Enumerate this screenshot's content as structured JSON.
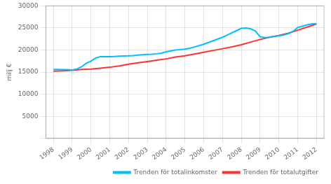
{
  "chart_data": {
    "type": "line",
    "ylabel": "milj €",
    "xlim": [
      1997.6,
      2012.4
    ],
    "ylim": [
      0,
      30000
    ],
    "xticks": [
      1998,
      1999,
      2000,
      2001,
      2002,
      2003,
      2004,
      2005,
      2006,
      2007,
      2008,
      2009,
      2010,
      2011,
      2012
    ],
    "yticks": [
      {
        "value": 0,
        "label": ""
      },
      5000,
      10000,
      15000,
      20000,
      25000,
      30000
    ],
    "grid": true,
    "legend": "lower right",
    "series": [
      {
        "name": "Trenden för totalinkomster",
        "color": "#00BFFF",
        "x": [
          1998,
          1998.25,
          1998.5,
          1998.75,
          1999,
          1999.25,
          1999.5,
          1999.75,
          2000,
          2000.25,
          2000.5,
          2000.75,
          2001,
          2001.25,
          2001.5,
          2001.75,
          2002,
          2002.25,
          2002.5,
          2002.75,
          2003,
          2003.25,
          2003.5,
          2003.75,
          2004,
          2004.25,
          2004.5,
          2004.75,
          2005,
          2005.25,
          2005.5,
          2005.75,
          2006,
          2006.25,
          2006.5,
          2006.75,
          2007,
          2007.25,
          2007.5,
          2007.75,
          2008,
          2008.25,
          2008.5,
          2008.75,
          2009,
          2009.25,
          2009.5,
          2009.75,
          2010,
          2010.25,
          2010.5,
          2010.75,
          2011,
          2011.25,
          2011.5,
          2011.75,
          2012
        ],
        "values": [
          15600,
          15600,
          15550,
          15550,
          15500,
          15700,
          16200,
          17000,
          17500,
          18200,
          18500,
          18500,
          18500,
          18550,
          18600,
          18650,
          18700,
          18750,
          18850,
          18950,
          19000,
          19050,
          19150,
          19300,
          19600,
          19800,
          20000,
          20100,
          20200,
          20400,
          20700,
          21000,
          21300,
          21700,
          22100,
          22500,
          22900,
          23400,
          23900,
          24400,
          24900,
          25000,
          24800,
          24300,
          23000,
          22800,
          22900,
          23100,
          23200,
          23400,
          23700,
          24200,
          25100,
          25400,
          25700,
          25900,
          26000
        ]
      },
      {
        "name": "Trenden för totalutgifter",
        "color": "#FF3030",
        "x": [
          1998,
          1998.5,
          1999,
          1999.5,
          2000,
          2000.5,
          2001,
          2001.5,
          2002,
          2002.5,
          2003,
          2003.5,
          2004,
          2004.5,
          2005,
          2005.5,
          2006,
          2006.5,
          2007,
          2007.5,
          2008,
          2008.5,
          2009,
          2009.5,
          2010,
          2010.5,
          2011,
          2011.5,
          2012
        ],
        "values": [
          15200,
          15300,
          15400,
          15600,
          15700,
          15900,
          16100,
          16400,
          16800,
          17100,
          17400,
          17700,
          18000,
          18400,
          18700,
          19100,
          19500,
          19900,
          20300,
          20700,
          21200,
          21800,
          22400,
          22900,
          23300,
          23800,
          24500,
          25200,
          25900
        ]
      }
    ]
  }
}
